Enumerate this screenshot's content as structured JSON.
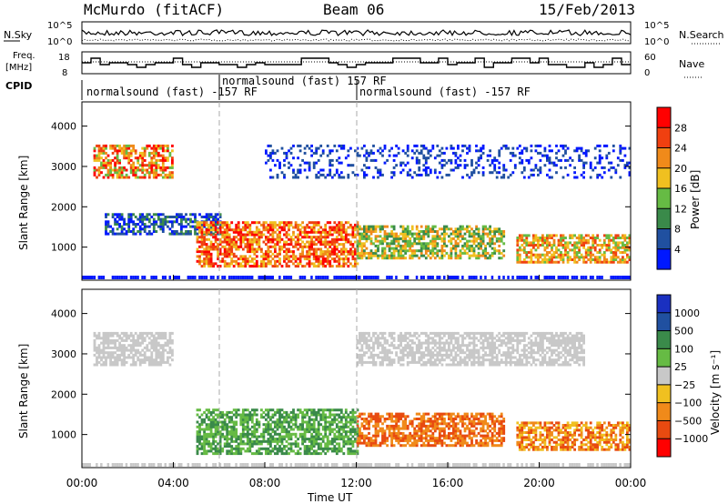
{
  "header": {
    "station": "McMurdo (fitACF)",
    "beam": "Beam 06",
    "date": "15/Feb/2013"
  },
  "top_panels": {
    "nsky_label": "N.Sky",
    "nsearch_label": "N.Search",
    "nsky_ticks": [
      "10^5",
      "10^0"
    ],
    "freq_label_1": "Freq.",
    "freq_label_2": "[MHz]",
    "freq_ticks": [
      "18",
      "8"
    ],
    "nave_label": "Nave",
    "nave_ticks": [
      "60",
      "0"
    ],
    "cpid_label": "CPID",
    "cpid_segments": [
      {
        "label": "normalsound (fast) -157 RF",
        "start_hour": 0,
        "end_hour": 6
      },
      {
        "label": "normalsound (fast) 157 RF",
        "start_hour": 6,
        "end_hour": 12
      },
      {
        "label": "normalsound (fast) -157 RF",
        "start_hour": 12,
        "end_hour": 24
      }
    ]
  },
  "colors": {
    "power_scale": [
      "#0018ff",
      "#2050a0",
      "#3a8a4a",
      "#66bb44",
      "#f0c020",
      "#f08a1a",
      "#f04010",
      "#ff0000"
    ],
    "velocity_scale": [
      "#ff0000",
      "#e84a10",
      "#f08a1a",
      "#f0c020",
      "#c8c8c8",
      "#66bb44",
      "#3a8a4a",
      "#2050a0",
      "#1a30c0"
    ],
    "ground_scatter": "#c8c8c8"
  },
  "chart_data": [
    {
      "type": "heatmap",
      "title": "",
      "xlabel": "Time UT",
      "ylabel": "Slant Range [km]",
      "xlim": [
        0,
        24
      ],
      "ylim": [
        180,
        4600
      ],
      "x_ticks": [
        "00:00",
        "04:00",
        "08:00",
        "12:00",
        "16:00",
        "20:00",
        "00:00"
      ],
      "y_ticks": [
        "1000",
        "2000",
        "3000",
        "4000"
      ],
      "colorbar_label": "Power [dB]",
      "colorbar_ticks": [
        "4",
        "8",
        "12",
        "16",
        "20",
        "24",
        "28"
      ],
      "scatter_regions": [
        {
          "x": [
            0.5,
            4.0
          ],
          "y": [
            2700,
            3500
          ],
          "level": "high-mixed"
        },
        {
          "x": [
            1.0,
            6.0
          ],
          "y": [
            1300,
            1800
          ],
          "level": "low"
        },
        {
          "x": [
            5.0,
            12.0
          ],
          "y": [
            500,
            1600
          ],
          "level": "high"
        },
        {
          "x": [
            12.0,
            18.5
          ],
          "y": [
            700,
            1500
          ],
          "level": "medium"
        },
        {
          "x": [
            19.0,
            24.0
          ],
          "y": [
            600,
            1300
          ],
          "level": "medium-high"
        },
        {
          "x": [
            8.0,
            24.0
          ],
          "y": [
            2700,
            3500
          ],
          "level": "low-sparse"
        }
      ]
    },
    {
      "type": "heatmap",
      "title": "",
      "xlabel": "Time UT",
      "ylabel": "Slant Range [km]",
      "xlim": [
        0,
        24
      ],
      "ylim": [
        180,
        4600
      ],
      "x_ticks": [
        "00:00",
        "04:00",
        "08:00",
        "12:00",
        "16:00",
        "20:00",
        "00:00"
      ],
      "y_ticks": [
        "1000",
        "2000",
        "3000",
        "4000"
      ],
      "colorbar_label": "Velocity [m s⁻¹]",
      "colorbar_ticks": [
        "1000",
        "500",
        "100",
        "25",
        "−25",
        "−100",
        "−500",
        "−1000"
      ],
      "scatter_regions": [
        {
          "x": [
            0.5,
            4.0
          ],
          "y": [
            2700,
            3500
          ],
          "level": "ground-scatter"
        },
        {
          "x": [
            5.0,
            12.0
          ],
          "y": [
            500,
            1600
          ],
          "level": "+100 to +500"
        },
        {
          "x": [
            12.0,
            18.5
          ],
          "y": [
            700,
            1500
          ],
          "level": "-100 to -500"
        },
        {
          "x": [
            19.0,
            24.0
          ],
          "y": [
            600,
            1300
          ],
          "level": "-25 to -500"
        },
        {
          "x": [
            12.0,
            22.0
          ],
          "y": [
            2700,
            3500
          ],
          "level": "ground-scatter"
        }
      ]
    }
  ]
}
